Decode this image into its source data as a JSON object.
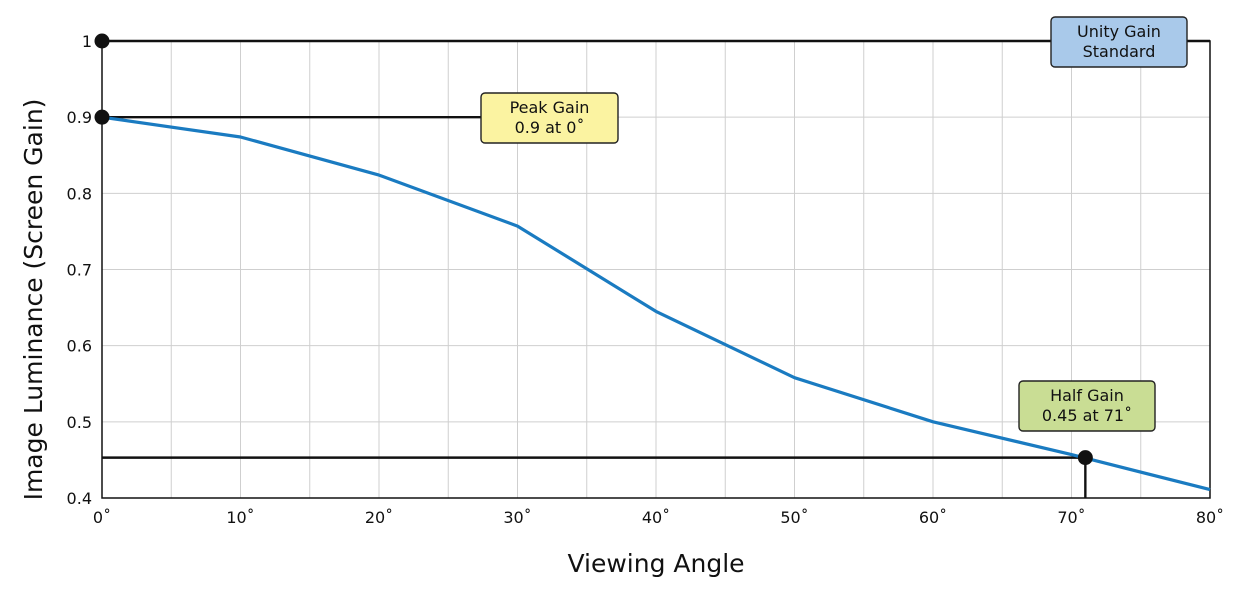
{
  "chart_data": {
    "type": "line",
    "xlabel": "Viewing Angle",
    "ylabel": "Image Luminance (Screen Gain)",
    "xlim": [
      0,
      80
    ],
    "ylim": [
      0.4,
      1.0
    ],
    "x_ticks": [
      0,
      10,
      20,
      30,
      40,
      50,
      60,
      70,
      80
    ],
    "x_tick_labels": [
      "0˚",
      "10˚",
      "20˚",
      "30˚",
      "40˚",
      "50˚",
      "60˚",
      "70˚",
      "80˚"
    ],
    "x_minor_gridlines": [
      5,
      15,
      25,
      35,
      45,
      55,
      65,
      75
    ],
    "y_ticks": [
      0.4,
      0.5,
      0.6,
      0.7,
      0.8,
      0.9,
      1.0
    ],
    "y_tick_labels": [
      "0.4",
      "0.5",
      "0.6",
      "0.7",
      "0.8",
      "0.9",
      "1"
    ],
    "grid": true,
    "series": [
      {
        "color": "#1a7bc1",
        "x": [
          0,
          10,
          20,
          30,
          40,
          50,
          60,
          70,
          80
        ],
        "y": [
          0.9,
          0.874,
          0.824,
          0.757,
          0.645,
          0.558,
          0.5,
          0.457,
          0.411
        ]
      }
    ],
    "reference_lines": [
      {
        "y": 1.0,
        "x_end": 80
      },
      {
        "y": 0.9,
        "x_end": 28
      },
      {
        "y": 0.453,
        "x_end": 71
      }
    ],
    "vertical_reference": {
      "x": 71,
      "y_from": 0.4,
      "y_to": 0.453
    },
    "markers": [
      {
        "x": 0,
        "y": 1.0
      },
      {
        "x": 0,
        "y": 0.9
      },
      {
        "x": 71,
        "y": 0.453
      }
    ],
    "annotations": [
      {
        "lines": [
          "Unity Gain",
          "Standard"
        ],
        "color": "#a9c9ea"
      },
      {
        "lines": [
          "Peak Gain",
          "0.9 at 0˚"
        ],
        "color": "#fbf3a1"
      },
      {
        "lines": [
          "Half Gain",
          "0.45 at 71˚"
        ],
        "color": "#c9dd94"
      }
    ]
  }
}
